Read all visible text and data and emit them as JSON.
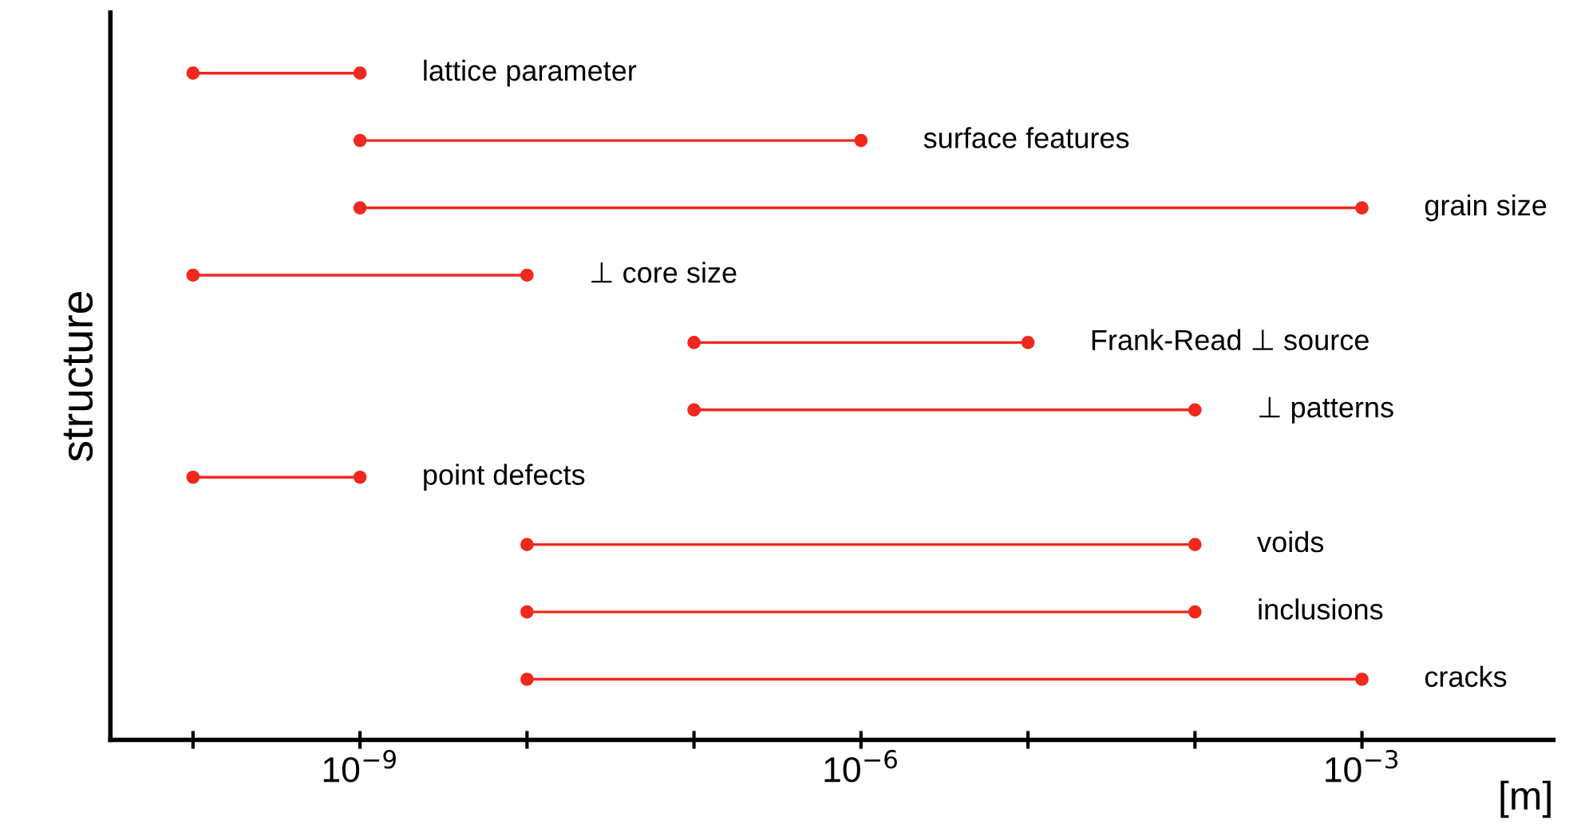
{
  "chart_data": {
    "type": "bar",
    "orientation": "horizontal",
    "xlabel": "[m]",
    "ylabel": "structure",
    "log": "x",
    "marker": "circle",
    "tick_labels": "x",
    "grid": false,
    "categories": [
      "lattice parameter",
      "surface features",
      "grain size",
      "⊥ core size",
      "Frank-Read ⊥ source",
      "⊥ patterns",
      "point defects",
      "voids",
      "inclusions",
      "cracks"
    ],
    "base": [
      1e-10,
      1e-09,
      1e-09,
      1e-10,
      1e-07,
      1e-07,
      1e-10,
      1e-08,
      1e-08,
      1e-08
    ],
    "values": [
      9e-10,
      9.99e-07,
      0.000999999,
      9.9e-09,
      9.9e-06,
      9.99e-05,
      9e-10,
      9.999e-05,
      9.999e-05,
      0.000999999
    ],
    "color": "#f0281e",
    "series": [
      {
        "type": "scatter",
        "color": "#f0281e",
        "values": [
          1e-10,
          1e-09,
          1e-09,
          1e-10,
          1e-07,
          1e-07,
          1e-10,
          1e-08,
          1e-08,
          1e-08
        ]
      },
      {
        "type": "scatter",
        "color": "#f0281e",
        "values": [
          1e-09,
          1e-06,
          0.001,
          1e-08,
          1e-05,
          0.0001,
          1e-09,
          0.0001,
          0.0001,
          0.001
        ]
      }
    ],
    "xlim": [
      3.2e-11,
      0.014
    ],
    "xticks": [
      {
        "value": 1e-10,
        "label": null
      },
      {
        "value": 1e-09,
        "label": "10$^{−9}$"
      },
      {
        "value": 1e-08,
        "label": null
      },
      {
        "value": 1e-07,
        "label": null
      },
      {
        "value": 1e-06,
        "label": "10$^{−6}$"
      },
      {
        "value": 1e-05,
        "label": null
      },
      {
        "value": 0.0001,
        "label": null
      },
      {
        "value": 0.001,
        "label": "10$^{−3}$"
      }
    ]
  }
}
